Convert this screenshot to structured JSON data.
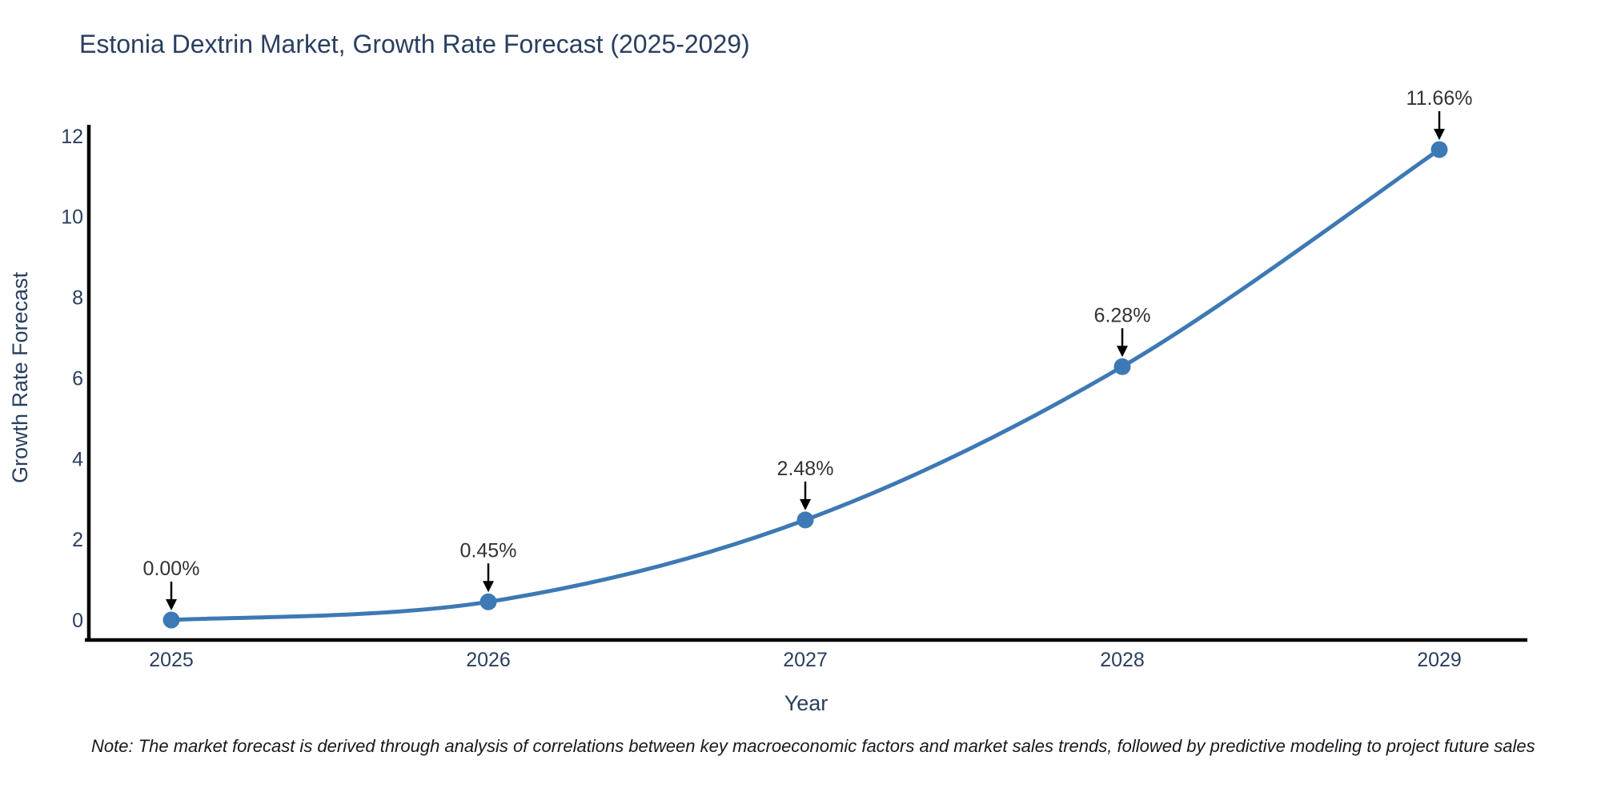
{
  "title": {
    "text": "Estonia Dextrin Market, Growth Rate Forecast (2025-2029)"
  },
  "chart_data": {
    "type": "line",
    "title": "Estonia Dextrin Market, Growth Rate Forecast (2025-2029)",
    "xlabel": "Year",
    "ylabel": "Growth Rate Forecast",
    "categories": [
      "2025",
      "2026",
      "2027",
      "2028",
      "2029"
    ],
    "values": [
      0.0,
      0.45,
      2.48,
      6.28,
      11.66
    ],
    "point_labels": [
      "0.00%",
      "0.45%",
      "2.48%",
      "6.28%",
      "11.66%"
    ],
    "y_ticks": [
      0,
      2,
      4,
      6,
      8,
      10,
      12
    ],
    "ylim": [
      -0.5,
      12.3
    ],
    "grid": false,
    "legend": false,
    "marker_style": "circle",
    "annotation_style": "arrow-down",
    "colors": {
      "line": "#3d79b4",
      "marker": "#3d79b4",
      "axis_line": "#000000",
      "tick_text": "#2a3f5f",
      "axis_title_text": "#2a3f5f",
      "point_label_text": "#333333",
      "arrow": "#000000",
      "background": "#ffffff"
    }
  },
  "note": {
    "text": "Note: The market forecast is derived through analysis of correlations between key macroeconomic factors and market sales trends, followed by predictive modeling to project future sales"
  }
}
